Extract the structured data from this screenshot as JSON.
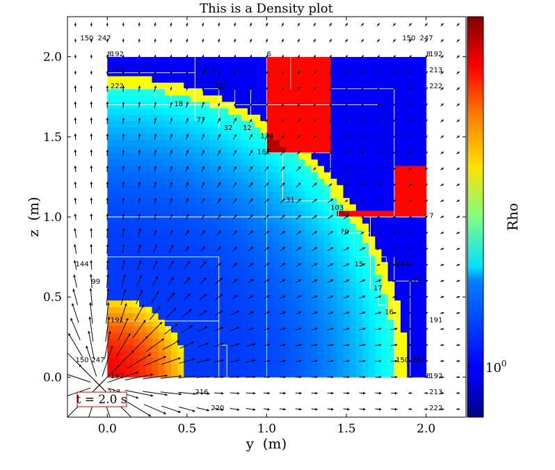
{
  "chart_data": {
    "type": "heatmap",
    "title": "This is a Density plot",
    "xlabel": "y  (m)",
    "ylabel": "z  (m)",
    "xlim": [
      -0.25,
      2.25
    ],
    "ylim": [
      -0.25,
      2.25
    ],
    "xticks": [
      0.0,
      0.5,
      1.0,
      1.5,
      2.0
    ],
    "xtick_labels": [
      "0.0",
      "0.5",
      "1.0",
      "1.5",
      "2.0"
    ],
    "yticks": [
      0.0,
      0.5,
      1.0,
      1.5,
      2.0
    ],
    "ytick_labels": [
      "0.0",
      "0.5",
      "1.0",
      "1.5",
      "2.0"
    ],
    "grid": false,
    "colorbar": {
      "label": "Rho",
      "scale": "log",
      "tick_value": 1,
      "tick_label_base": "10",
      "tick_label_exp": "0",
      "colormap": "jet"
    },
    "density_field": {
      "domain": [
        0,
        2,
        0,
        2
      ],
      "background_level": 0.18,
      "shell_radius": 1.82,
      "shell_level": 0.62,
      "core_radius": 0.5,
      "core_level": 0.88
    },
    "dense_blocks": [
      {
        "x": [
          1.0,
          1.4
        ],
        "y": [
          1.4,
          2.0
        ]
      },
      {
        "x": [
          1.8,
          2.0
        ],
        "y": [
          1.0,
          1.3
        ]
      },
      {
        "x": [
          1.45,
          1.8
        ],
        "y": [
          1.0,
          1.05
        ]
      }
    ],
    "block_labels": [
      {
        "x": -0.17,
        "y": 2.12,
        "text": "150"
      },
      {
        "x": -0.06,
        "y": 2.12,
        "text": "247"
      },
      {
        "x": 1.85,
        "y": 2.12,
        "text": "150"
      },
      {
        "x": 1.96,
        "y": 2.12,
        "text": "247"
      },
      {
        "x": 0.02,
        "y": 2.02,
        "text": "192"
      },
      {
        "x": 0.0,
        "y": 2.02,
        "text": "8"
      },
      {
        "x": 1.0,
        "y": 2.02,
        "text": "6"
      },
      {
        "x": 2.02,
        "y": 2.02,
        "text": "192"
      },
      {
        "x": 2.0,
        "y": 2.02,
        "text": "8"
      },
      {
        "x": 0.02,
        "y": 1.92,
        "text": "213"
      },
      {
        "x": 0.6,
        "y": 1.92,
        "text": "216"
      },
      {
        "x": 2.02,
        "y": 1.92,
        "text": "213"
      },
      {
        "x": 0.02,
        "y": 1.82,
        "text": "222"
      },
      {
        "x": 0.67,
        "y": 1.82,
        "text": "220"
      },
      {
        "x": 2.02,
        "y": 1.82,
        "text": "222"
      },
      {
        "x": 0.42,
        "y": 1.71,
        "text": "18"
      },
      {
        "x": 0.56,
        "y": 1.61,
        "text": "77"
      },
      {
        "x": 0.73,
        "y": 1.56,
        "text": "32"
      },
      {
        "x": 0.85,
        "y": 1.56,
        "text": "12"
      },
      {
        "x": 0.96,
        "y": 1.51,
        "text": "174"
      },
      {
        "x": 0.94,
        "y": 1.41,
        "text": "162"
      },
      {
        "x": 1.12,
        "y": 1.11,
        "text": "31"
      },
      {
        "x": 1.4,
        "y": 1.06,
        "text": "103"
      },
      {
        "x": 2.02,
        "y": 1.01,
        "text": "7"
      },
      {
        "x": 1.46,
        "y": 0.91,
        "text": "70"
      },
      {
        "x": 1.55,
        "y": 0.71,
        "text": "15"
      },
      {
        "x": 1.67,
        "y": 0.56,
        "text": "17"
      },
      {
        "x": 1.74,
        "y": 0.41,
        "text": "16"
      },
      {
        "x": 1.81,
        "y": 0.71,
        "text": "144"
      },
      {
        "x": 1.91,
        "y": 0.61,
        "text": "99"
      },
      {
        "x": -0.2,
        "y": 0.71,
        "text": "144"
      },
      {
        "x": -0.1,
        "y": 0.6,
        "text": "99"
      },
      {
        "x": 0.02,
        "y": 0.36,
        "text": "191"
      },
      {
        "x": 2.02,
        "y": 0.36,
        "text": "191"
      },
      {
        "x": -0.2,
        "y": 0.11,
        "text": "150"
      },
      {
        "x": -0.1,
        "y": 0.11,
        "text": "247"
      },
      {
        "x": 1.81,
        "y": 0.11,
        "text": "150"
      },
      {
        "x": 1.91,
        "y": 0.11,
        "text": "247"
      },
      {
        "x": 0.02,
        "y": 0.01,
        "text": "192"
      },
      {
        "x": 2.02,
        "y": 0.01,
        "text": "192"
      },
      {
        "x": 2.0,
        "y": 0.01,
        "text": "8"
      },
      {
        "x": 0.0,
        "y": -0.09,
        "text": "213"
      },
      {
        "x": 0.55,
        "y": -0.09,
        "text": "216"
      },
      {
        "x": 2.02,
        "y": -0.09,
        "text": "213"
      },
      {
        "x": 0.65,
        "y": -0.19,
        "text": "220"
      },
      {
        "x": 2.02,
        "y": -0.19,
        "text": "222"
      }
    ],
    "time_label": "t = 2.0 s"
  }
}
